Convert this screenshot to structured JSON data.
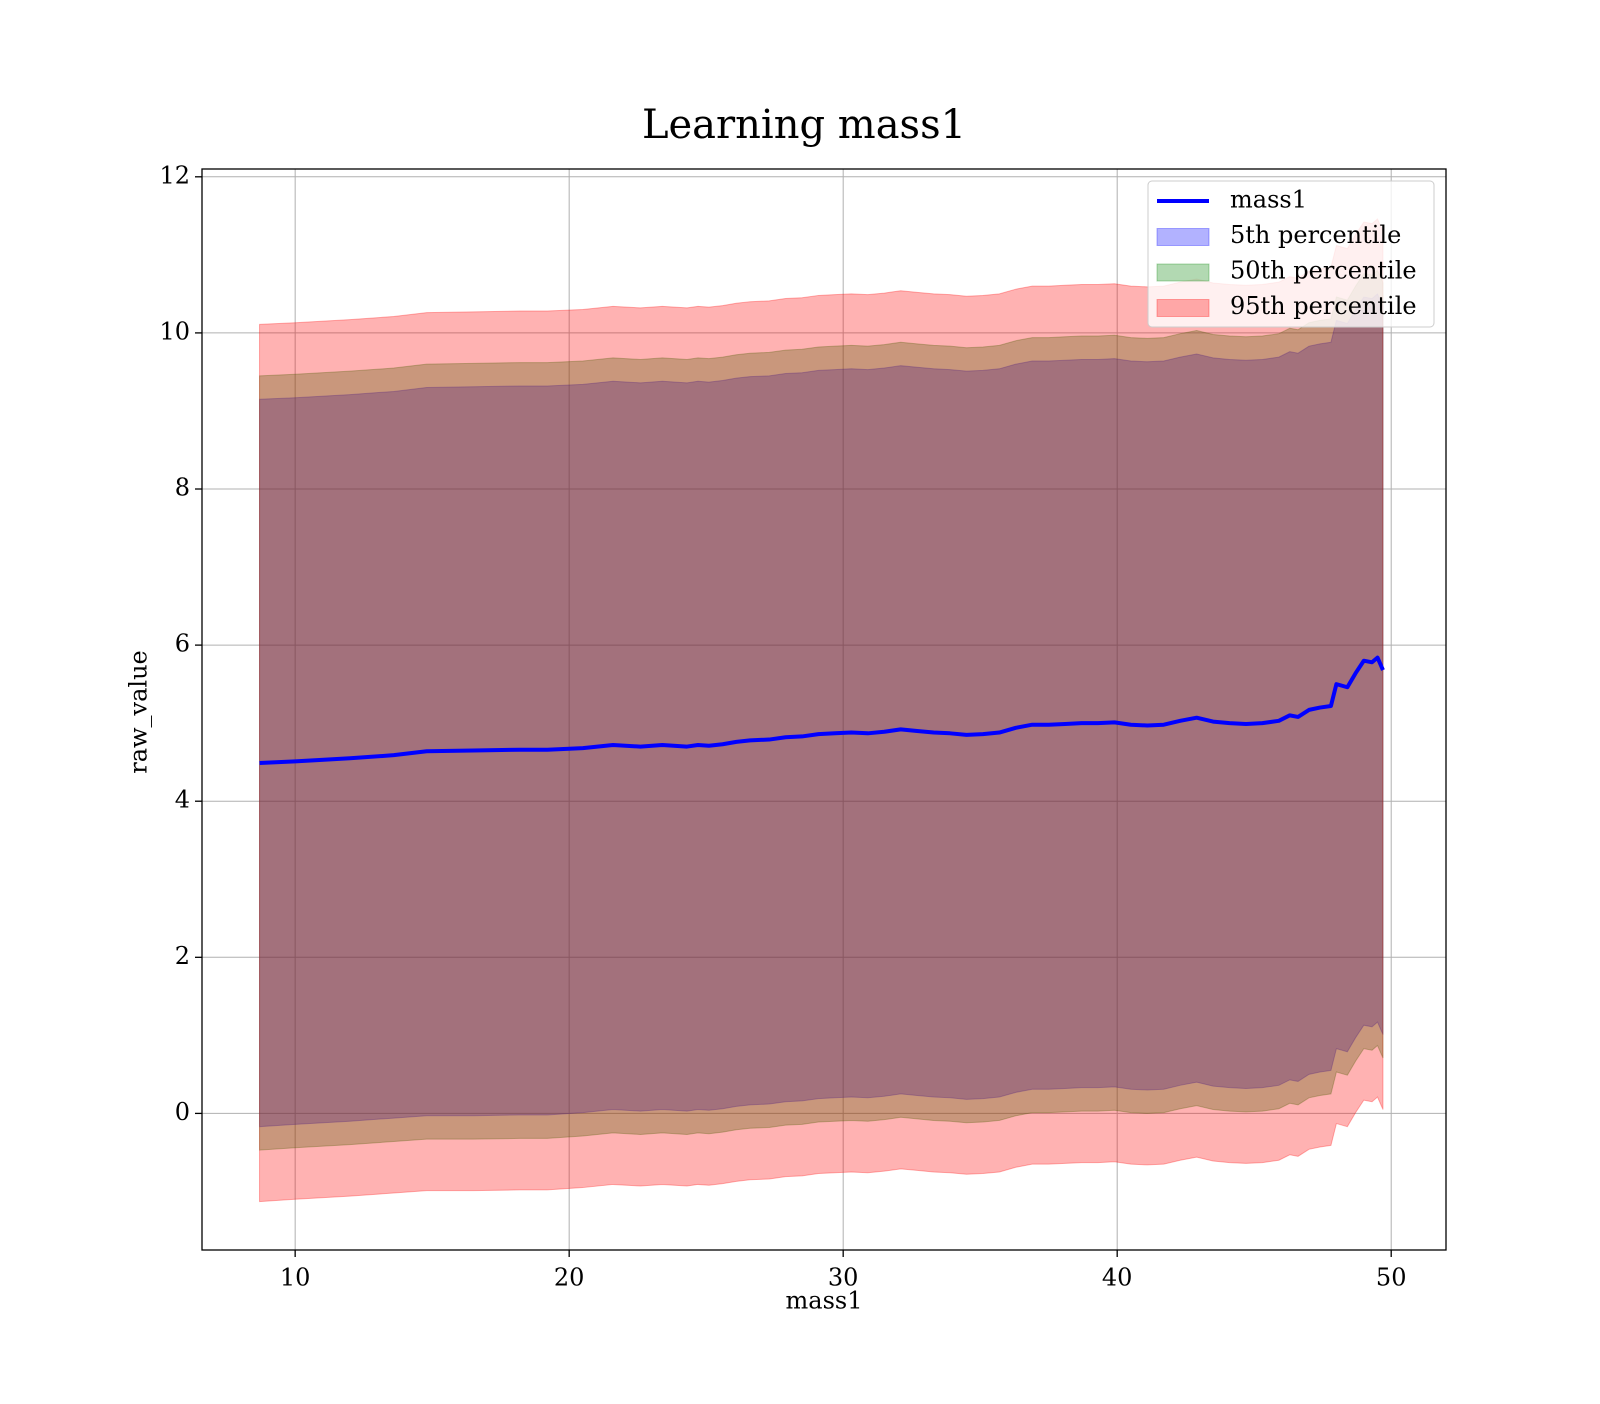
{
  "chart_data": {
    "type": "area",
    "title": "Learning mass1",
    "xlabel": "mass1",
    "ylabel": "raw_value",
    "xlim": [
      6.6,
      52.0
    ],
    "ylim": [
      -1.75,
      12.1
    ],
    "xticks": [
      10,
      20,
      30,
      40,
      50
    ],
    "yticks": [
      0,
      2,
      4,
      6,
      8,
      10,
      12
    ],
    "grid": true,
    "legend_position": "top-right",
    "x": [
      8.7,
      10.0,
      12.0,
      13.6,
      14.8,
      16.5,
      18.2,
      19.2,
      20.5,
      21.6,
      22.6,
      23.4,
      24.3,
      24.7,
      25.1,
      25.6,
      26.1,
      26.6,
      27.3,
      27.9,
      28.5,
      29.1,
      29.7,
      30.3,
      30.9,
      31.5,
      32.1,
      32.7,
      33.3,
      33.9,
      34.5,
      35.1,
      35.7,
      36.3,
      36.9,
      37.5,
      38.1,
      38.7,
      39.3,
      39.9,
      40.5,
      41.1,
      41.7,
      42.3,
      42.9,
      43.5,
      44.1,
      44.7,
      45.3,
      45.9,
      46.3,
      46.6,
      47.0,
      47.4,
      47.8,
      48.0,
      48.4,
      48.7,
      49.0,
      49.3,
      49.5,
      49.7
    ],
    "series": [
      {
        "name": "mass1",
        "kind": "line",
        "color": "#0000ff",
        "values": [
          4.49,
          4.51,
          4.55,
          4.59,
          4.64,
          4.65,
          4.66,
          4.66,
          4.68,
          4.72,
          4.7,
          4.72,
          4.7,
          4.72,
          4.71,
          4.73,
          4.76,
          4.78,
          4.79,
          4.82,
          4.83,
          4.86,
          4.87,
          4.88,
          4.87,
          4.89,
          4.92,
          4.9,
          4.88,
          4.87,
          4.85,
          4.86,
          4.88,
          4.94,
          4.98,
          4.98,
          4.99,
          5.0,
          5.0,
          5.01,
          4.98,
          4.97,
          4.98,
          5.03,
          5.07,
          5.02,
          5.0,
          4.99,
          5.0,
          5.03,
          5.1,
          5.08,
          5.17,
          5.2,
          5.22,
          5.5,
          5.46,
          5.64,
          5.8,
          5.78,
          5.84,
          5.68
        ]
      },
      {
        "name": "5th percentile",
        "kind": "band",
        "color": "#0000ff",
        "opacity": 0.3,
        "lower": [
          -0.17,
          -0.14,
          -0.1,
          -0.06,
          -0.03,
          -0.03,
          -0.02,
          -0.02,
          0.01,
          0.05,
          0.03,
          0.05,
          0.03,
          0.05,
          0.04,
          0.06,
          0.09,
          0.11,
          0.12,
          0.15,
          0.16,
          0.19,
          0.2,
          0.21,
          0.2,
          0.22,
          0.25,
          0.23,
          0.21,
          0.2,
          0.18,
          0.19,
          0.21,
          0.27,
          0.31,
          0.31,
          0.32,
          0.33,
          0.33,
          0.34,
          0.31,
          0.3,
          0.31,
          0.36,
          0.4,
          0.35,
          0.33,
          0.32,
          0.33,
          0.36,
          0.43,
          0.41,
          0.5,
          0.53,
          0.55,
          0.83,
          0.79,
          0.97,
          1.13,
          1.11,
          1.17,
          1.01
        ],
        "upper": [
          9.15,
          9.17,
          9.21,
          9.25,
          9.3,
          9.31,
          9.32,
          9.32,
          9.34,
          9.38,
          9.36,
          9.38,
          9.36,
          9.38,
          9.37,
          9.39,
          9.42,
          9.44,
          9.45,
          9.48,
          9.49,
          9.52,
          9.53,
          9.54,
          9.53,
          9.55,
          9.58,
          9.56,
          9.54,
          9.53,
          9.51,
          9.52,
          9.54,
          9.6,
          9.64,
          9.64,
          9.65,
          9.66,
          9.66,
          9.67,
          9.64,
          9.63,
          9.64,
          9.69,
          9.73,
          9.68,
          9.66,
          9.65,
          9.66,
          9.69,
          9.76,
          9.74,
          9.83,
          9.86,
          9.88,
          10.16,
          10.12,
          10.3,
          10.46,
          10.44,
          10.5,
          10.34
        ]
      },
      {
        "name": "50th percentile",
        "kind": "band",
        "color": "#008000",
        "opacity": 0.3,
        "lower": [
          -0.47,
          -0.44,
          -0.4,
          -0.36,
          -0.33,
          -0.33,
          -0.32,
          -0.32,
          -0.29,
          -0.25,
          -0.27,
          -0.25,
          -0.27,
          -0.25,
          -0.26,
          -0.24,
          -0.21,
          -0.19,
          -0.18,
          -0.15,
          -0.14,
          -0.11,
          -0.1,
          -0.09,
          -0.1,
          -0.08,
          -0.05,
          -0.07,
          -0.09,
          -0.1,
          -0.12,
          -0.11,
          -0.09,
          -0.03,
          0.01,
          0.01,
          0.02,
          0.03,
          0.03,
          0.04,
          0.01,
          0.0,
          0.01,
          0.06,
          0.1,
          0.05,
          0.03,
          0.02,
          0.03,
          0.06,
          0.13,
          0.11,
          0.2,
          0.23,
          0.25,
          0.53,
          0.49,
          0.67,
          0.83,
          0.81,
          0.87,
          0.71
        ],
        "upper": [
          9.45,
          9.47,
          9.51,
          9.55,
          9.6,
          9.61,
          9.62,
          9.62,
          9.64,
          9.68,
          9.66,
          9.68,
          9.66,
          9.68,
          9.67,
          9.69,
          9.72,
          9.74,
          9.75,
          9.78,
          9.79,
          9.82,
          9.83,
          9.84,
          9.83,
          9.85,
          9.88,
          9.86,
          9.84,
          9.83,
          9.81,
          9.82,
          9.84,
          9.9,
          9.94,
          9.94,
          9.95,
          9.96,
          9.96,
          9.97,
          9.94,
          9.93,
          9.94,
          9.99,
          10.03,
          9.98,
          9.96,
          9.95,
          9.96,
          9.99,
          10.06,
          10.04,
          10.13,
          10.16,
          10.18,
          10.46,
          10.42,
          10.6,
          10.76,
          10.74,
          10.8,
          10.64
        ]
      },
      {
        "name": "95th percentile",
        "kind": "band",
        "color": "#ff0000",
        "opacity": 0.3,
        "lower": [
          -1.13,
          -1.1,
          -1.06,
          -1.02,
          -0.99,
          -0.99,
          -0.98,
          -0.98,
          -0.95,
          -0.91,
          -0.93,
          -0.91,
          -0.93,
          -0.91,
          -0.92,
          -0.9,
          -0.87,
          -0.85,
          -0.84,
          -0.81,
          -0.8,
          -0.77,
          -0.76,
          -0.75,
          -0.76,
          -0.74,
          -0.71,
          -0.73,
          -0.75,
          -0.76,
          -0.78,
          -0.77,
          -0.75,
          -0.69,
          -0.65,
          -0.65,
          -0.64,
          -0.63,
          -0.63,
          -0.62,
          -0.65,
          -0.66,
          -0.65,
          -0.6,
          -0.56,
          -0.61,
          -0.63,
          -0.64,
          -0.63,
          -0.6,
          -0.53,
          -0.55,
          -0.46,
          -0.43,
          -0.41,
          -0.13,
          -0.17,
          0.01,
          0.17,
          0.15,
          0.21,
          0.05
        ],
        "upper": [
          10.11,
          10.13,
          10.17,
          10.21,
          10.26,
          10.27,
          10.28,
          10.28,
          10.3,
          10.34,
          10.32,
          10.34,
          10.32,
          10.34,
          10.33,
          10.35,
          10.38,
          10.4,
          10.41,
          10.44,
          10.45,
          10.48,
          10.49,
          10.5,
          10.49,
          10.51,
          10.54,
          10.52,
          10.5,
          10.49,
          10.47,
          10.48,
          10.5,
          10.56,
          10.6,
          10.6,
          10.61,
          10.62,
          10.62,
          10.63,
          10.6,
          10.59,
          10.6,
          10.65,
          10.69,
          10.64,
          10.62,
          10.61,
          10.62,
          10.65,
          10.72,
          10.7,
          10.79,
          10.82,
          10.84,
          11.12,
          11.08,
          11.26,
          11.42,
          11.4,
          11.46,
          11.3
        ]
      }
    ]
  }
}
